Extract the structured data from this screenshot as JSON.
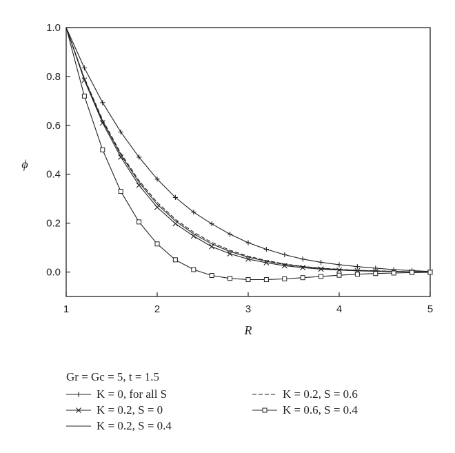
{
  "chart_data": {
    "type": "line",
    "xlabel": "R",
    "ylabel": "ϕ",
    "xlim": [
      1,
      5
    ],
    "ylim": [
      -0.1,
      1.0
    ],
    "x_ticks": [
      1,
      2,
      3,
      4,
      5
    ],
    "y_ticks": [
      0.0,
      0.2,
      0.4,
      0.6,
      0.8,
      1.0
    ],
    "x_tick_labels": [
      "1",
      "2",
      "3",
      "4",
      "5"
    ],
    "y_tick_labels": [
      "0.0",
      "0.2",
      "0.4",
      "0.6",
      "0.8",
      "1.0"
    ],
    "grid": false,
    "legend_position": "bottom",
    "legend_header": "Gr = Gc = 5, t = 1.5",
    "series": [
      {
        "name": "K = 0, for all S",
        "marker": "plus",
        "dash": "solid",
        "x": [
          1.0,
          1.2,
          1.4,
          1.6,
          1.8,
          2.0,
          2.2,
          2.4,
          2.6,
          2.8,
          3.0,
          3.2,
          3.4,
          3.6,
          3.8,
          4.0,
          4.2,
          4.4,
          4.6,
          4.8,
          5.0
        ],
        "y": [
          1.0,
          0.835,
          0.693,
          0.573,
          0.47,
          0.38,
          0.305,
          0.245,
          0.197,
          0.155,
          0.12,
          0.093,
          0.071,
          0.053,
          0.04,
          0.03,
          0.022,
          0.016,
          0.01,
          0.006,
          0.002
        ]
      },
      {
        "name": "K = 0.2, S = 0",
        "marker": "cross",
        "dash": "solid",
        "x": [
          1.0,
          1.2,
          1.4,
          1.6,
          1.8,
          2.0,
          2.2,
          2.4,
          2.6,
          2.8,
          3.0,
          3.2,
          3.4,
          3.6,
          3.8,
          4.0,
          4.2,
          4.4,
          4.6,
          4.8,
          5.0
        ],
        "y": [
          1.0,
          0.785,
          0.61,
          0.47,
          0.355,
          0.265,
          0.198,
          0.147,
          0.104,
          0.075,
          0.053,
          0.038,
          0.026,
          0.018,
          0.012,
          0.008,
          0.005,
          0.003,
          0.002,
          0.001,
          0.0
        ]
      },
      {
        "name": "K = 0.2, S = 0.4",
        "marker": "none",
        "dash": "solid",
        "x": [
          1.0,
          1.2,
          1.4,
          1.6,
          1.8,
          2.0,
          2.2,
          2.4,
          2.6,
          2.8,
          3.0,
          3.2,
          3.4,
          3.6,
          3.8,
          4.0,
          4.2,
          4.4,
          4.6,
          4.8,
          5.0
        ],
        "y": [
          1.0,
          0.79,
          0.618,
          0.48,
          0.367,
          0.277,
          0.209,
          0.156,
          0.115,
          0.084,
          0.061,
          0.044,
          0.031,
          0.022,
          0.015,
          0.01,
          0.007,
          0.004,
          0.003,
          0.001,
          0.0
        ]
      },
      {
        "name": "K = 0.2, S = 0.6",
        "marker": "none",
        "dash": "dashed",
        "x": [
          1.0,
          1.2,
          1.4,
          1.6,
          1.8,
          2.0,
          2.2,
          2.4,
          2.6,
          2.8,
          3.0,
          3.2,
          3.4,
          3.6,
          3.8,
          4.0,
          4.2,
          4.4,
          4.6,
          4.8,
          5.0
        ],
        "y": [
          1.0,
          0.793,
          0.623,
          0.486,
          0.374,
          0.285,
          0.216,
          0.163,
          0.121,
          0.089,
          0.065,
          0.047,
          0.033,
          0.023,
          0.016,
          0.011,
          0.007,
          0.005,
          0.003,
          0.001,
          0.0
        ]
      },
      {
        "name": "K = 0.6, S = 0.4",
        "marker": "square",
        "dash": "solid",
        "x": [
          1.0,
          1.2,
          1.4,
          1.6,
          1.8,
          2.0,
          2.2,
          2.4,
          2.6,
          2.8,
          3.0,
          3.2,
          3.4,
          3.6,
          3.8,
          4.0,
          4.2,
          4.4,
          4.6,
          4.8,
          5.0
        ],
        "y": [
          1.0,
          0.72,
          0.5,
          0.33,
          0.205,
          0.115,
          0.05,
          0.01,
          -0.014,
          -0.026,
          -0.031,
          -0.031,
          -0.028,
          -0.023,
          -0.018,
          -0.013,
          -0.009,
          -0.006,
          -0.004,
          -0.002,
          -0.001
        ]
      }
    ]
  },
  "colors": {
    "line": "#231f20",
    "background": "#ffffff"
  }
}
